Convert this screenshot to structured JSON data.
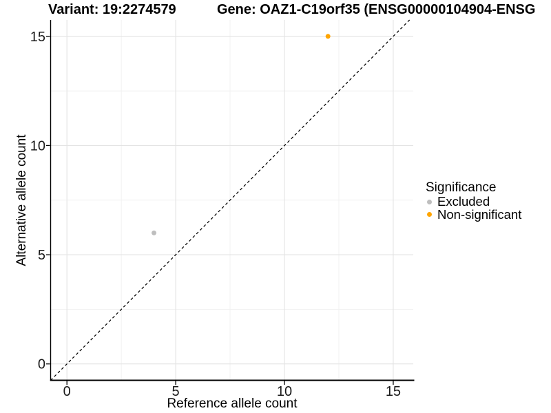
{
  "titles": {
    "variant": "Variant: 19:2274579",
    "gene": "Gene: OAZ1-C19orf35 (ENSG00000104904-ENSG"
  },
  "axes": {
    "x_label": "Reference allele count",
    "y_label": "Alternative allele count",
    "x_ticks": [
      "0",
      "5",
      "10",
      "15"
    ],
    "y_ticks": [
      "0",
      "5",
      "10",
      "15"
    ]
  },
  "legend": {
    "title": "Significance",
    "items": [
      {
        "label": "Excluded",
        "color": "#bebebe"
      },
      {
        "label": "Non-significant",
        "color": "#ffa500"
      }
    ]
  },
  "chart_data": {
    "type": "scatter",
    "title_left": "Variant: 19:2274579",
    "title_right": "Gene: OAZ1-C19orf35 (ENSG00000104904-ENSG",
    "xlabel": "Reference allele count",
    "ylabel": "Alternative allele count",
    "xlim": [
      -0.75,
      15.92
    ],
    "ylim": [
      -0.75,
      15.75
    ],
    "x_breaks": [
      0,
      5,
      10,
      15
    ],
    "y_breaks": [
      0,
      5,
      10,
      15
    ],
    "x_minor_breaks": [
      2.5,
      7.5,
      12.5
    ],
    "y_minor_breaks": [
      2.5,
      7.5,
      12.5
    ],
    "grid": true,
    "legend_position": "right",
    "legend_title": "Significance",
    "series": [
      {
        "name": "Excluded",
        "color": "#bebebe",
        "points": [
          [
            4,
            6
          ]
        ]
      },
      {
        "name": "Non-significant",
        "color": "#ffa500",
        "points": [
          [
            12,
            15
          ]
        ]
      }
    ],
    "reference_line": {
      "type": "identity",
      "slope": 1,
      "intercept": 0,
      "linestyle": "dashed",
      "color": "#000000"
    },
    "colors": {
      "grid_major": "#e3e3e3",
      "grid_minor": "#f1f1f1",
      "axis_line": "#000000",
      "tick_text": "#1a1a1a",
      "background": "#ffffff"
    }
  }
}
